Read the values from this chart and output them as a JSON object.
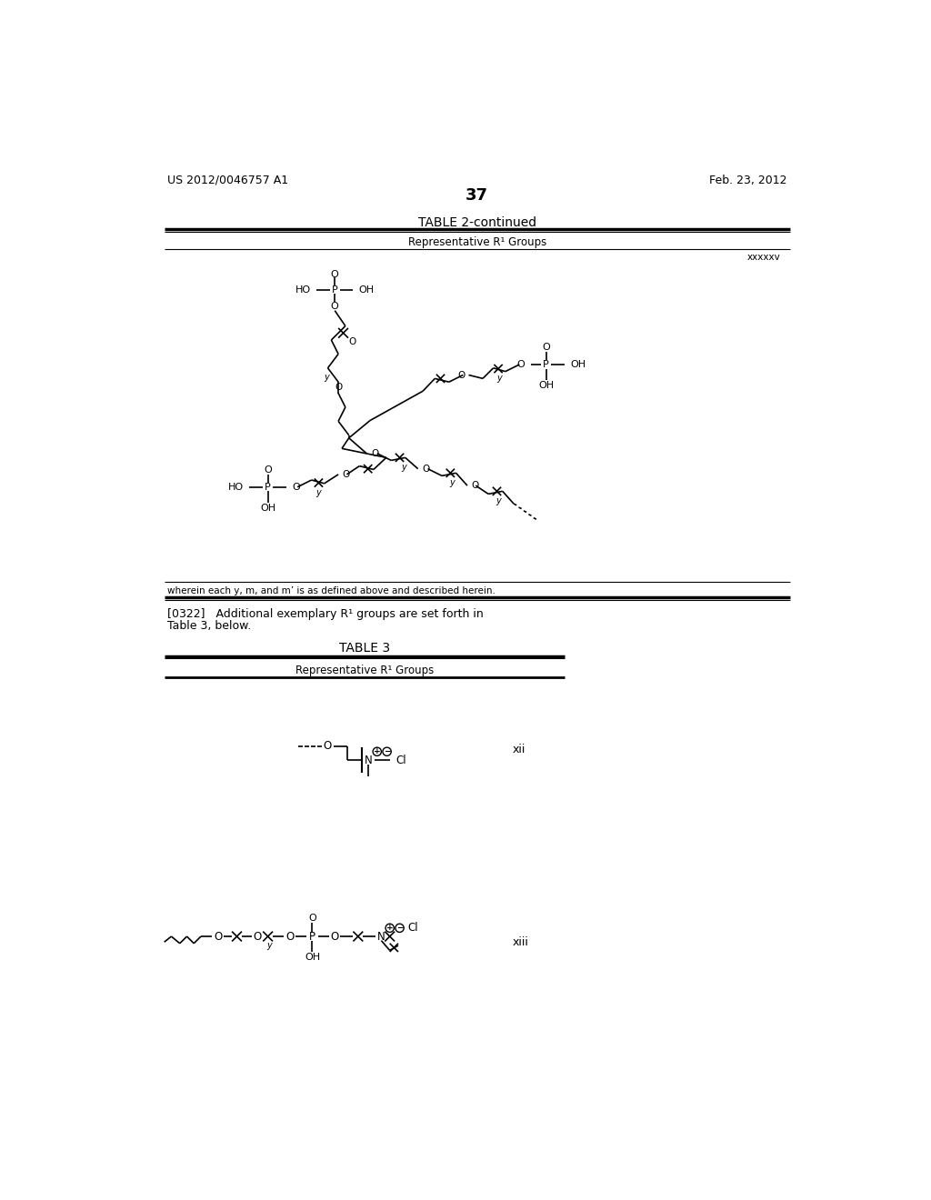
{
  "bg_color": "#ffffff",
  "page_number": "37",
  "patent_left": "US 2012/0046757 A1",
  "patent_right": "Feb. 23, 2012",
  "table2_title": "TABLE 2-continued",
  "table2_subtitle": "Representative R¹ Groups",
  "table2_label": "xxxxxv",
  "table2_footnote": "wherein each y, m, and m’ is as defined above and described herein.",
  "paragraph_text_1": "[0322]   Additional exemplary R¹ groups are set forth in",
  "paragraph_text_2": "Table 3, below.",
  "table3_title": "TABLE 3",
  "table3_subtitle": "Representative R¹ Groups",
  "label_xii": "xii",
  "label_xiii": "xiii"
}
